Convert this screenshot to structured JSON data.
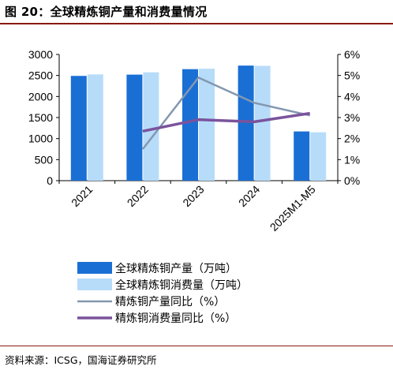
{
  "figure_title": "图 20：全球精炼铜产量和消费量情况",
  "source_note": "资料来源：ICSG，国海证券研究所",
  "chart_data": {
    "type": "bar",
    "categories": [
      "2021",
      "2022",
      "2023",
      "2024",
      "2025M1-M5"
    ],
    "series": [
      {
        "name": "全球精炼铜产量（万吨）",
        "kind": "bar",
        "axis": "left",
        "color": "#1a6fd4",
        "values": [
          2490,
          2520,
          2650,
          2735,
          1170
        ]
      },
      {
        "name": "全球精炼铜消费量（万吨）",
        "kind": "bar",
        "axis": "left",
        "color": "#b7dcfa",
        "values": [
          2525,
          2575,
          2660,
          2730,
          1150
        ]
      },
      {
        "name": "精炼铜产量同比（%）",
        "kind": "line",
        "axis": "right",
        "color": "#8497b0",
        "values": [
          null,
          1.5,
          4.9,
          3.7,
          3.1
        ]
      },
      {
        "name": "精炼铜消费量同比（%）",
        "kind": "line",
        "axis": "right",
        "color": "#7a539c",
        "values": [
          null,
          2.35,
          2.9,
          2.8,
          3.2
        ]
      }
    ],
    "y_left": {
      "min": 0,
      "max": 3000,
      "ticks": [
        "0",
        "500",
        "1000",
        "1500",
        "2000",
        "2500",
        "3000"
      ]
    },
    "y_right": {
      "min": 0,
      "max": 6,
      "ticks": [
        "0%",
        "1%",
        "2%",
        "3%",
        "4%",
        "5%",
        "6%"
      ]
    },
    "grid": false,
    "legend_position": "bottom"
  }
}
